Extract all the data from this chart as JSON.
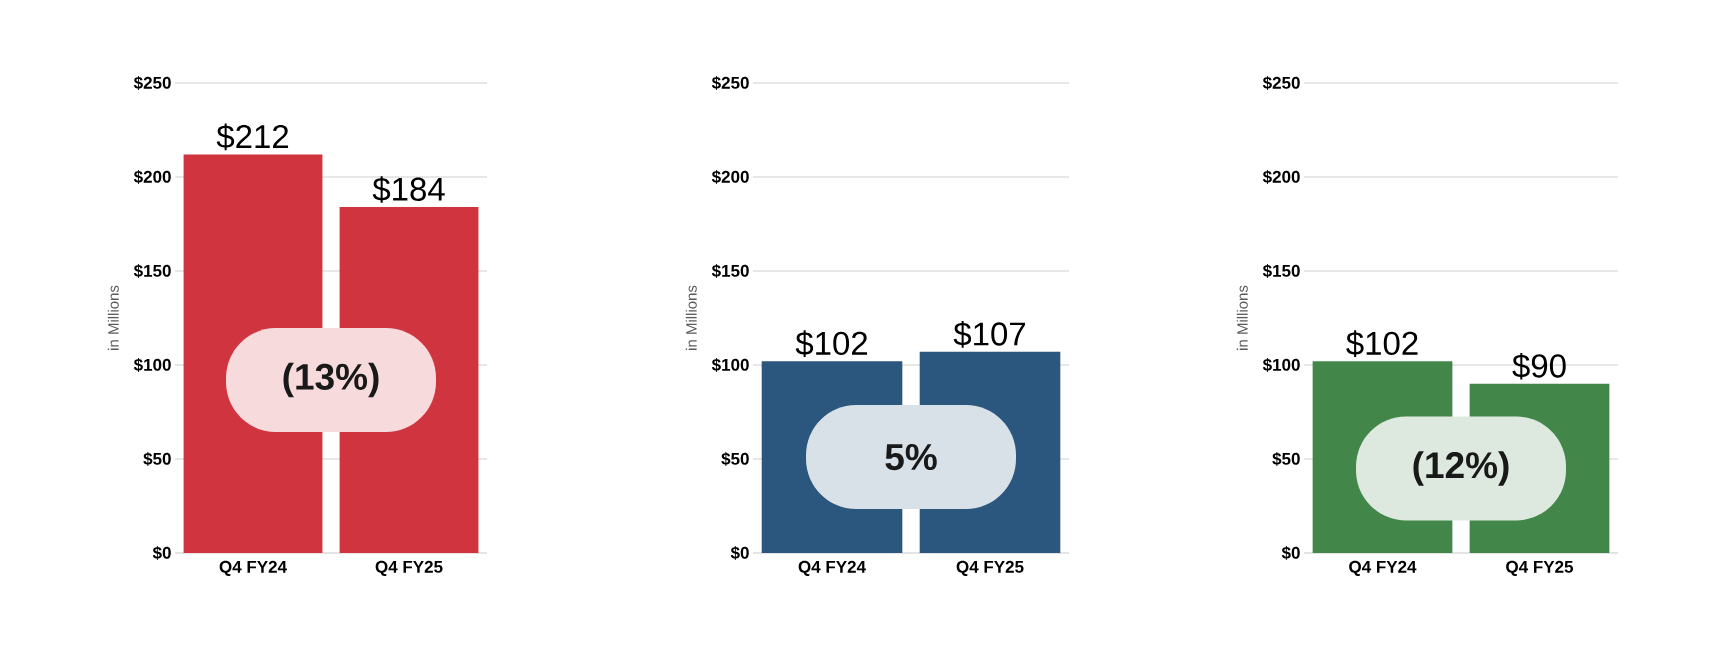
{
  "chart_data": [
    {
      "type": "bar",
      "ylabel": "in Millions",
      "categories": [
        "Q4 FY24",
        "Q4 FY25"
      ],
      "values": [
        212,
        184
      ],
      "color": "#d0353f",
      "value_labels": [
        "$212",
        "$184"
      ],
      "ylim": [
        0,
        250
      ],
      "yticks": [
        {
          "value": 0,
          "label": "$0"
        },
        {
          "value": 50,
          "label": "$50"
        },
        {
          "value": 100,
          "label": "$100"
        },
        {
          "value": 150,
          "label": "$150"
        },
        {
          "value": 200,
          "label": "$200"
        },
        {
          "value": 250,
          "label": "$250"
        }
      ],
      "grid": "y",
      "annotations": [
        "(13%)"
      ]
    },
    {
      "type": "bar",
      "ylabel": "in Millions",
      "categories": [
        "Q4 FY24",
        "Q4 FY25"
      ],
      "values": [
        102,
        107
      ],
      "color": "#2b577e",
      "value_labels": [
        "$102",
        "$107"
      ],
      "ylim": [
        0,
        250
      ],
      "yticks": [
        {
          "value": 0,
          "label": "$0"
        },
        {
          "value": 50,
          "label": "$50"
        },
        {
          "value": 100,
          "label": "$100"
        },
        {
          "value": 150,
          "label": "$150"
        },
        {
          "value": 200,
          "label": "$200"
        },
        {
          "value": 250,
          "label": "$250"
        }
      ],
      "grid": "y",
      "annotations": [
        "5%"
      ]
    },
    {
      "type": "bar",
      "ylabel": "in Millions",
      "categories": [
        "Q4 FY24",
        "Q4 FY25"
      ],
      "values": [
        102,
        90
      ],
      "color": "#42864a",
      "value_labels": [
        "$102",
        "$90"
      ],
      "ylim": [
        0,
        250
      ],
      "yticks": [
        {
          "value": 0,
          "label": "$0"
        },
        {
          "value": 50,
          "label": "$50"
        },
        {
          "value": 100,
          "label": "$100"
        },
        {
          "value": 150,
          "label": "$150"
        },
        {
          "value": 200,
          "label": "$200"
        },
        {
          "value": 250,
          "label": "$250"
        }
      ],
      "grid": "y",
      "annotations": [
        "(12%)"
      ]
    }
  ]
}
